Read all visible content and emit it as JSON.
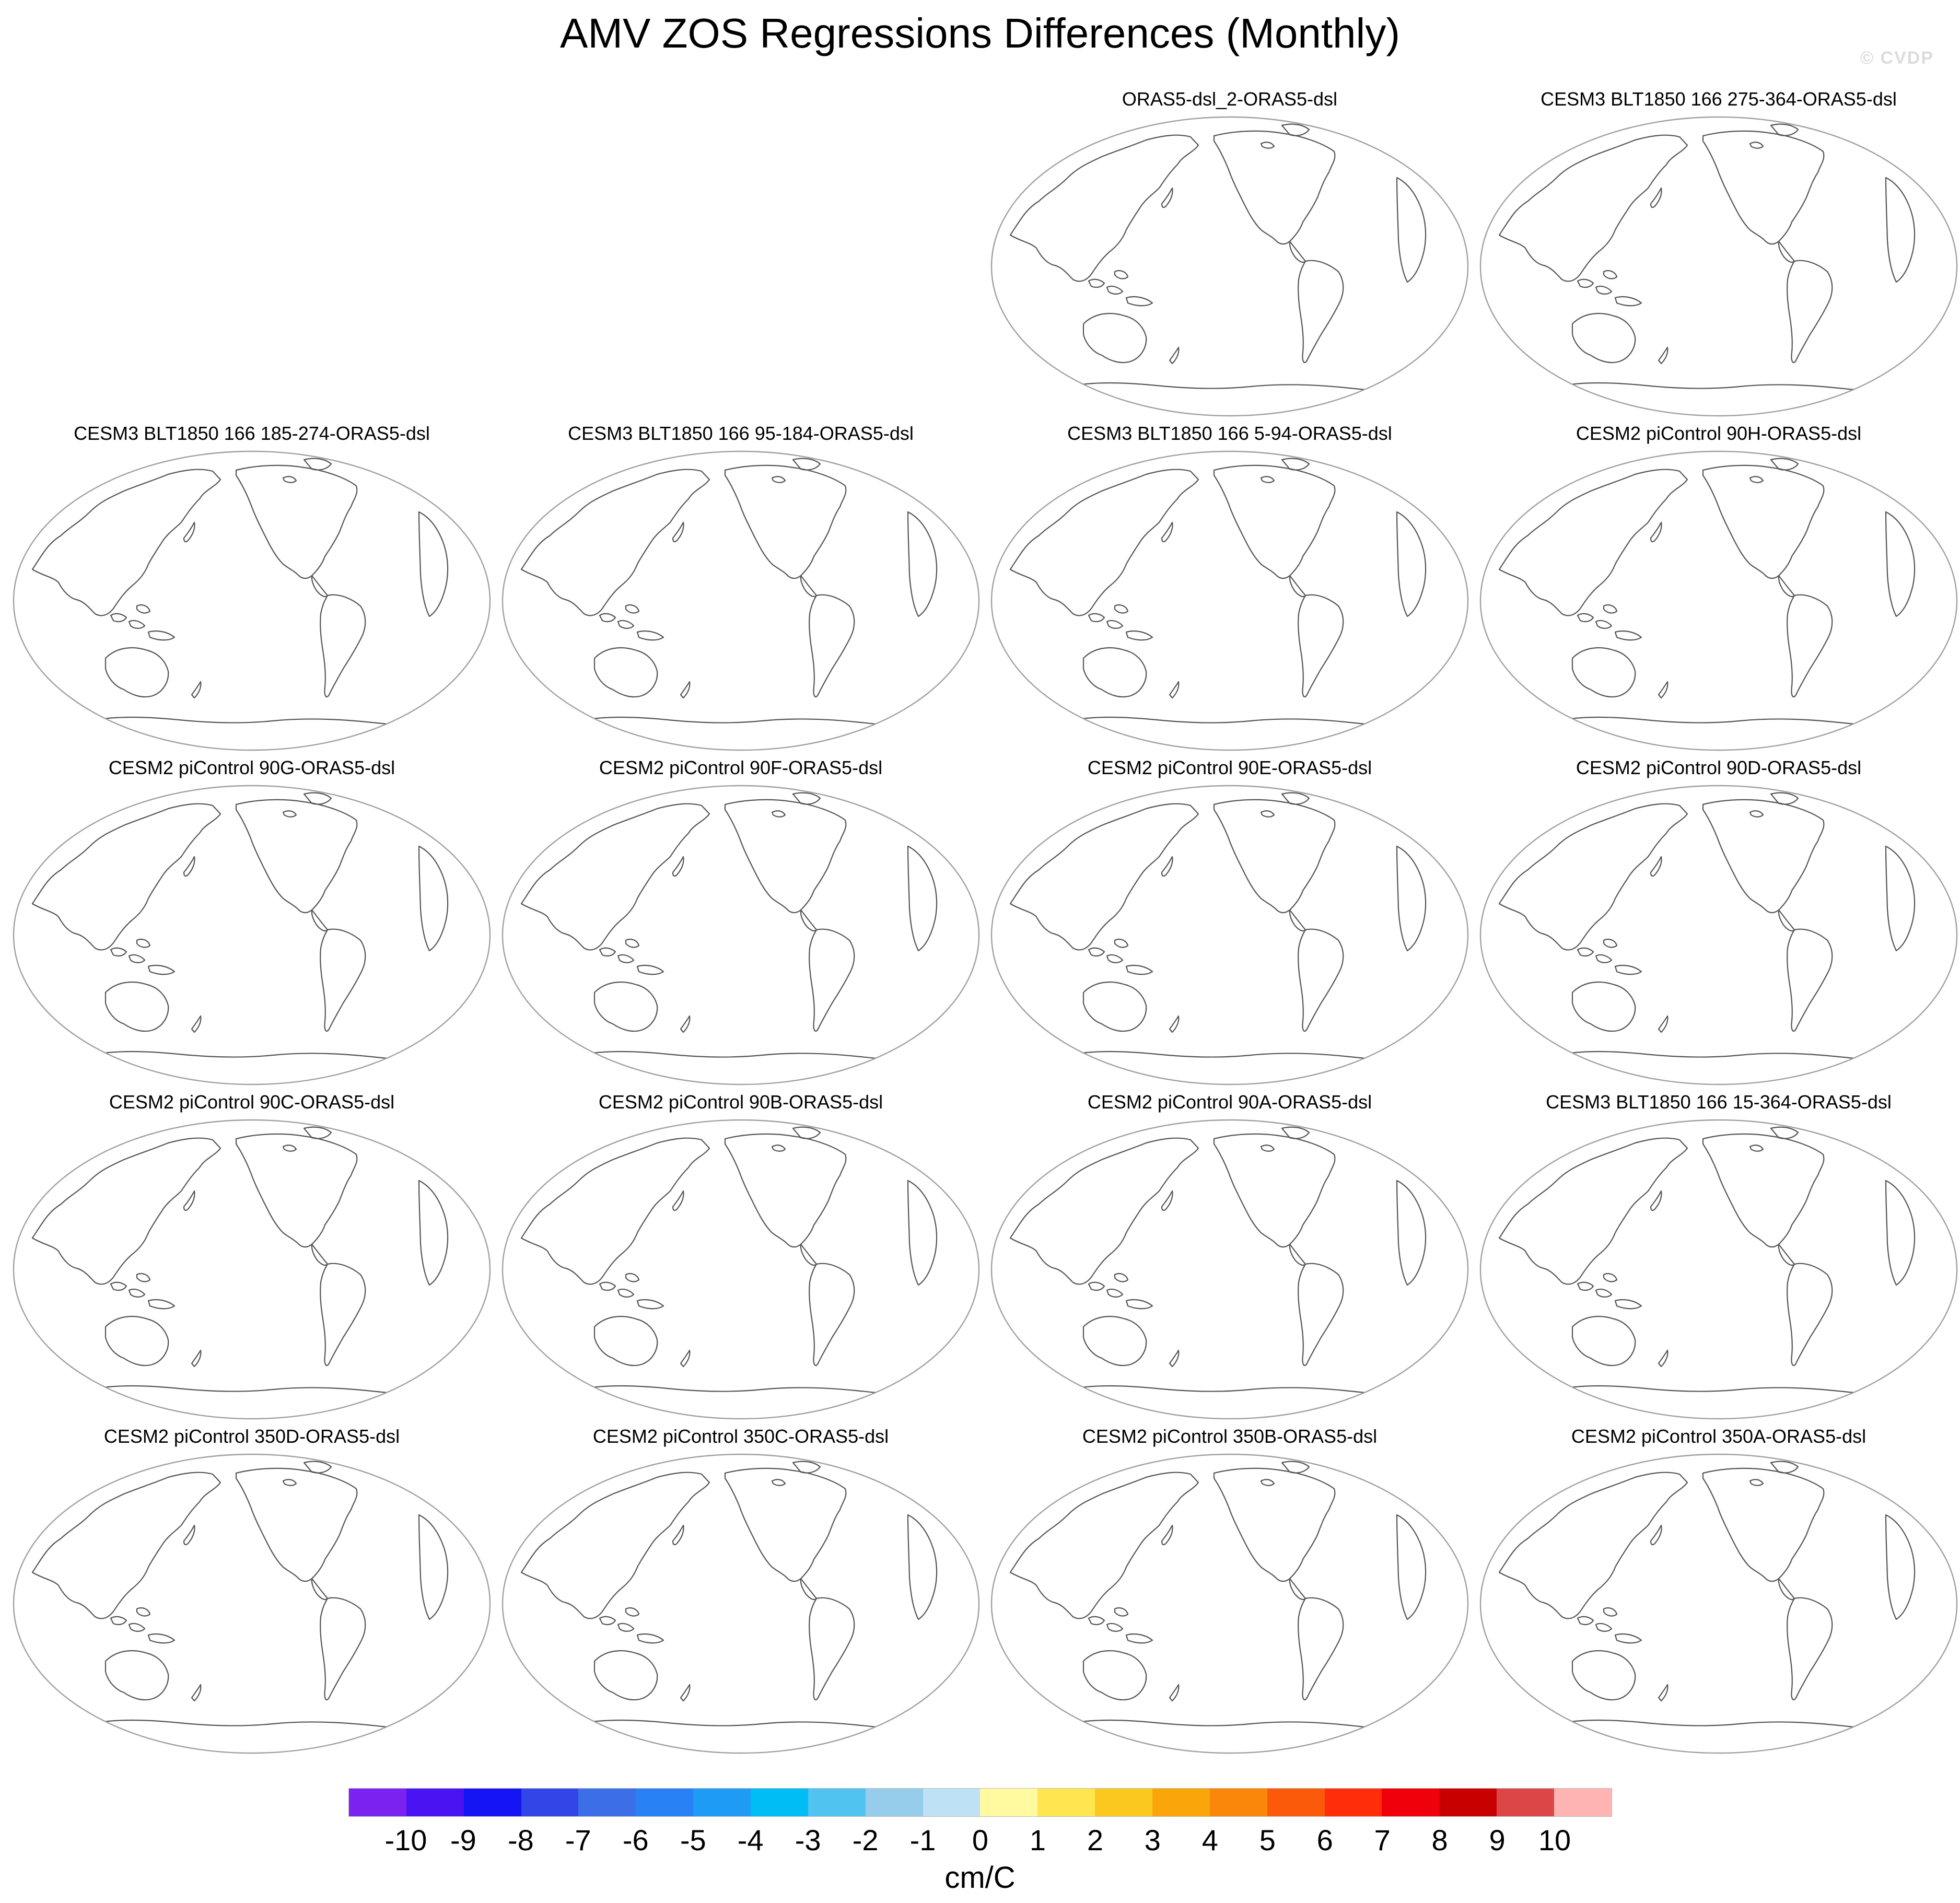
{
  "figure": {
    "title": "AMV ZOS Regressions Differences (Monthly)",
    "watermark": "© CVDP"
  },
  "panels": [
    {
      "title": "ORAS5-dsl_2-ORAS5-dsl"
    },
    {
      "title": "CESM3 BLT1850 166 275-364-ORAS5-dsl"
    },
    {
      "title": "CESM3 BLT1850 166 185-274-ORAS5-dsl"
    },
    {
      "title": "CESM3 BLT1850 166 95-184-ORAS5-dsl"
    },
    {
      "title": "CESM3 BLT1850 166 5-94-ORAS5-dsl"
    },
    {
      "title": "CESM2 piControl 90H-ORAS5-dsl"
    },
    {
      "title": "CESM2 piControl 90G-ORAS5-dsl"
    },
    {
      "title": "CESM2 piControl 90F-ORAS5-dsl"
    },
    {
      "title": "CESM2 piControl 90E-ORAS5-dsl"
    },
    {
      "title": "CESM2 piControl 90D-ORAS5-dsl"
    },
    {
      "title": "CESM2 piControl 90C-ORAS5-dsl"
    },
    {
      "title": "CESM2 piControl 90B-ORAS5-dsl"
    },
    {
      "title": "CESM2 piControl 90A-ORAS5-dsl"
    },
    {
      "title": "CESM3 BLT1850 166 15-364-ORAS5-dsl"
    },
    {
      "title": "CESM2 piControl 350D-ORAS5-dsl"
    },
    {
      "title": "CESM2 piControl 350C-ORAS5-dsl"
    },
    {
      "title": "CESM2 piControl 350B-ORAS5-dsl"
    },
    {
      "title": "CESM2 piControl 350A-ORAS5-dsl"
    }
  ],
  "colorbar": {
    "units": "cm/C",
    "labels": [
      "-10",
      "-9",
      "-8",
      "-7",
      "-6",
      "-5",
      "-4",
      "-3",
      "-2",
      "-1",
      "0",
      "1",
      "2",
      "3",
      "4",
      "5",
      "6",
      "7",
      "8",
      "9",
      "10"
    ],
    "colors": [
      "#7b21f0",
      "#4a14f2",
      "#1414f5",
      "#3246e8",
      "#3c6ee8",
      "#2882f5",
      "#1e9bf5",
      "#00bef5",
      "#50c3f0",
      "#96cdeb",
      "#bee1f5",
      "#fffaa0",
      "#ffe650",
      "#fac81e",
      "#faa50a",
      "#fa870a",
      "#fa5a0a",
      "#ff2d0a",
      "#f0000a",
      "#c80000",
      "#dc4646",
      "#ffb4b4"
    ]
  }
}
